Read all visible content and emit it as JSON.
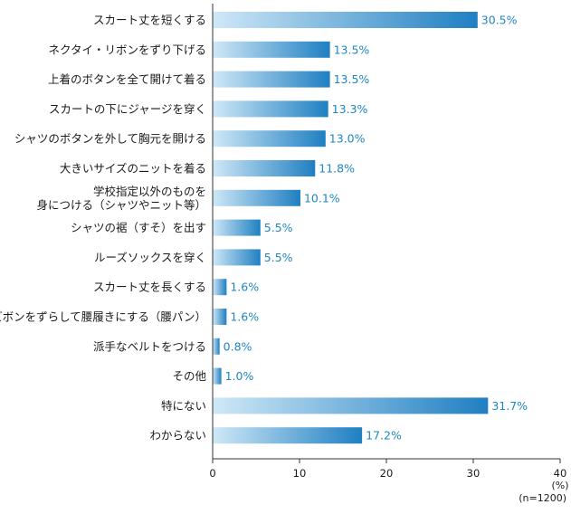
{
  "chart_data": {
    "type": "bar",
    "orientation": "horizontal",
    "categories": [
      [
        "スカート丈を短くする"
      ],
      [
        "ネクタイ・リボンをずり下げる"
      ],
      [
        "上着のボタンを全て開けて着る"
      ],
      [
        "スカートの下にジャージを穿く"
      ],
      [
        "シャツのボタンを外して胸元を開ける"
      ],
      [
        "大きいサイズのニットを着る"
      ],
      [
        "学校指定以外のものを",
        "身につける（シャツやニット等）"
      ],
      [
        "シャツの裾（すそ）を出す"
      ],
      [
        "ルーズソックスを穿く"
      ],
      [
        "スカート丈を長くする"
      ],
      [
        "ズボンをずらして腰履きにする（腰パン）"
      ],
      [
        "派手なベルトをつける"
      ],
      [
        "その他"
      ],
      [
        "特にない"
      ],
      [
        "わからない"
      ]
    ],
    "values": [
      30.5,
      13.5,
      13.5,
      13.3,
      13.0,
      11.8,
      10.1,
      5.5,
      5.5,
      1.6,
      1.6,
      0.8,
      1.0,
      31.7,
      17.2
    ],
    "value_labels": [
      "30.5%",
      "13.5%",
      "13.5%",
      "13.3%",
      "13.0%",
      "11.8%",
      "10.1%",
      "5.5%",
      "5.5%",
      "1.6%",
      "1.6%",
      "0.8%",
      "1.0%",
      "31.7%",
      "17.2%"
    ],
    "xlim": [
      0,
      40
    ],
    "xticks": [
      0,
      10,
      20,
      30,
      40
    ],
    "xtick_labels": [
      "0",
      "10",
      "20",
      "30",
      "40"
    ],
    "unit_label": "(%)",
    "sample_label": "(n=1200)",
    "bar_gradient": [
      "#cfe8f7",
      "#1f7fc2"
    ],
    "value_color": "#1f86c4",
    "axis_color": "#333333"
  }
}
